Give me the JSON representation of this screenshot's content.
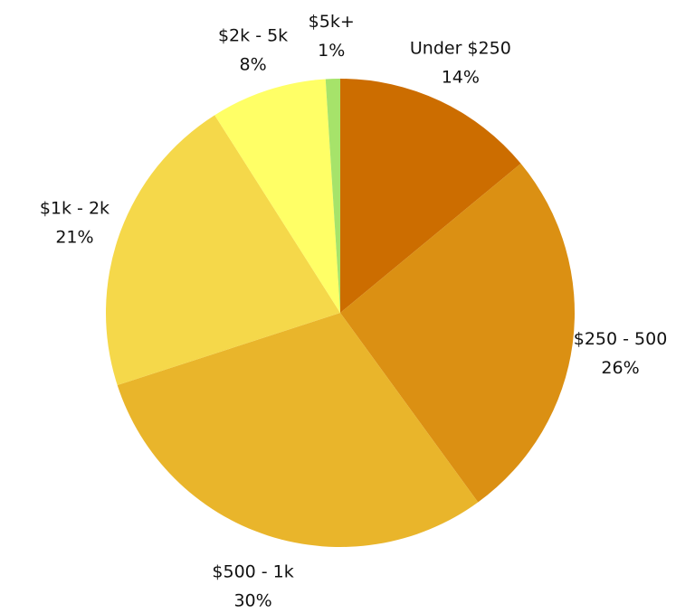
{
  "chart_data": {
    "type": "pie",
    "title": "",
    "start": "top",
    "direction": "clockwise",
    "slices": [
      {
        "label": "Under $250",
        "value": 14,
        "display": "14%",
        "color": "#CC6D00"
      },
      {
        "label": "$250 - 500",
        "value": 26,
        "display": "26%",
        "color": "#DB9013"
      },
      {
        "label": "$500 - 1k",
        "value": 30,
        "display": "30%",
        "color": "#E9B52B"
      },
      {
        "label": "$1k - 2k",
        "value": 21,
        "display": "21%",
        "color": "#F5D84A"
      },
      {
        "label": "$2k - 5k",
        "value": 8,
        "display": "8%",
        "color": "#FFFF66"
      },
      {
        "label": "$5k+",
        "value": 1,
        "display": "1%",
        "color": "#A6E36A"
      }
    ]
  }
}
